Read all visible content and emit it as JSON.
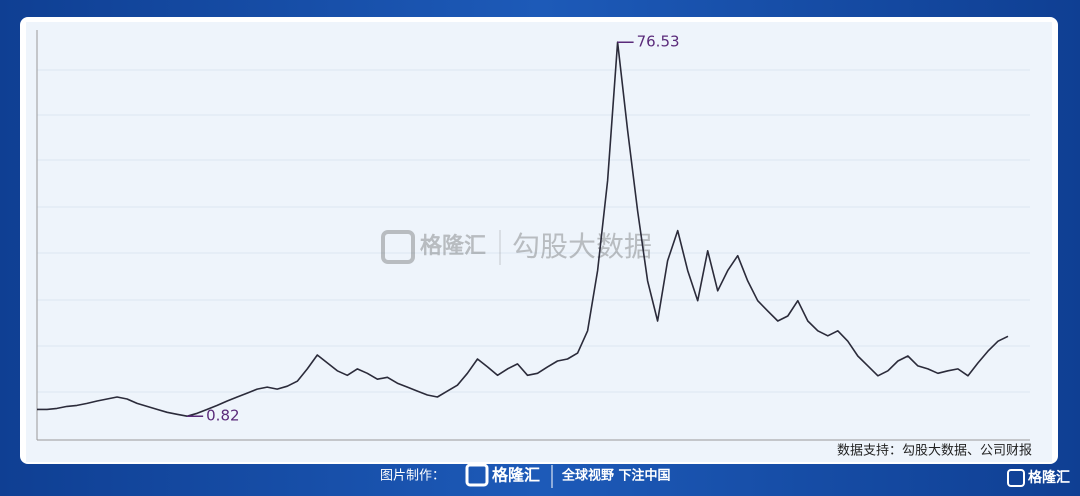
{
  "chart_data": {
    "type": "line",
    "series": [
      {
        "color": "#2b2b3a",
        "values": [
          2.2,
          2.2,
          2.4,
          2.8,
          3.0,
          3.4,
          3.9,
          4.3,
          4.7,
          4.3,
          3.4,
          2.8,
          2.2,
          1.6,
          1.2,
          0.82,
          1.4,
          2.2,
          3.0,
          3.9,
          4.7,
          5.5,
          6.3,
          6.7,
          6.3,
          6.9,
          7.9,
          10.4,
          13.2,
          11.6,
          10.0,
          9.1,
          10.4,
          9.5,
          8.3,
          8.7,
          7.5,
          6.7,
          5.9,
          5.1,
          4.7,
          5.9,
          7.1,
          9.5,
          12.4,
          10.8,
          9.1,
          10.4,
          11.4,
          9.1,
          9.5,
          10.8,
          12.0,
          12.4,
          13.6,
          18.1,
          30.3,
          48.5,
          76.53,
          58.7,
          42.4,
          28.2,
          20.1,
          32.3,
          38.4,
          30.3,
          24.2,
          34.3,
          26.2,
          30.3,
          33.3,
          28.2,
          24.2,
          22.1,
          20.1,
          21.1,
          24.2,
          20.1,
          18.1,
          17.1,
          18.1,
          16.0,
          13.0,
          11.0,
          9.0,
          10.0,
          12.0,
          13.0,
          11.0,
          10.4,
          9.5,
          10.0,
          10.4,
          9.0,
          11.6,
          14.0,
          16.0,
          17.0
        ]
      }
    ],
    "ylim": [
      -4,
      79
    ],
    "annotations": [
      {
        "value": 76.53,
        "label": "76.53"
      },
      {
        "value": 0.82,
        "label": "0.82"
      }
    ],
    "source": "数据支持：勾股大数据、公司财报"
  },
  "watermark": {
    "brand": "格隆汇",
    "product": "勾股大数据"
  },
  "footer": {
    "made_by": "图片制作：",
    "brand": "格隆汇",
    "slogan": "全球视野 下注中国",
    "corner_brand": "格隆汇"
  }
}
